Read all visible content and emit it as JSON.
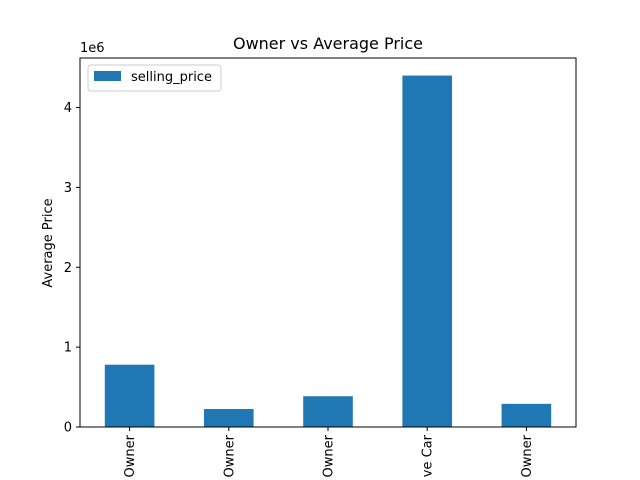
{
  "chart_data": {
    "type": "bar",
    "title": "Owner vs Average Price",
    "xlabel": "",
    "ylabel": "Average Price",
    "y_offset_label": "1e6",
    "categories": [
      "First Owner",
      "Second Owner",
      "Third Owner",
      "Test Drive Car",
      "Fourth & Above Owner"
    ],
    "category_labels_visible": [
      "Owner",
      "Owner",
      "Owner",
      "ve Car",
      "Owner"
    ],
    "series": [
      {
        "name": "selling_price",
        "values": [
          780000,
          225000,
          385000,
          4400000,
          290000
        ],
        "color": "#1f77b4"
      }
    ],
    "ylim": [
      0,
      4620000
    ],
    "yticks": [
      0,
      1000000,
      2000000,
      3000000,
      4000000
    ],
    "ytick_labels": [
      "0",
      "1",
      "2",
      "3",
      "4"
    ],
    "legend": {
      "position": "top-left"
    },
    "grid": false
  }
}
